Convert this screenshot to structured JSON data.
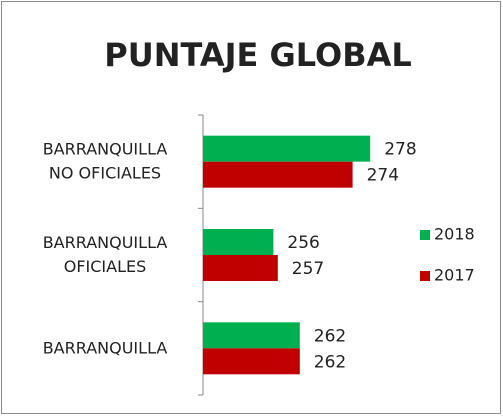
{
  "chart_data": {
    "type": "bar",
    "orientation": "horizontal",
    "title": "PUNTAJE GLOBAL",
    "categories": [
      "BARRANQUILLA\nNO OFICIALES",
      "BARRANQUILLA\nOFICIALES",
      "BARRANQUILLA"
    ],
    "series": [
      {
        "name": "2018",
        "color": "#00b050",
        "values": [
          278,
          256,
          262
        ]
      },
      {
        "name": "2017",
        "color": "#c00000",
        "values": [
          274,
          257,
          262
        ]
      }
    ],
    "xlim": [
      240,
      290
    ],
    "legend": "right"
  }
}
